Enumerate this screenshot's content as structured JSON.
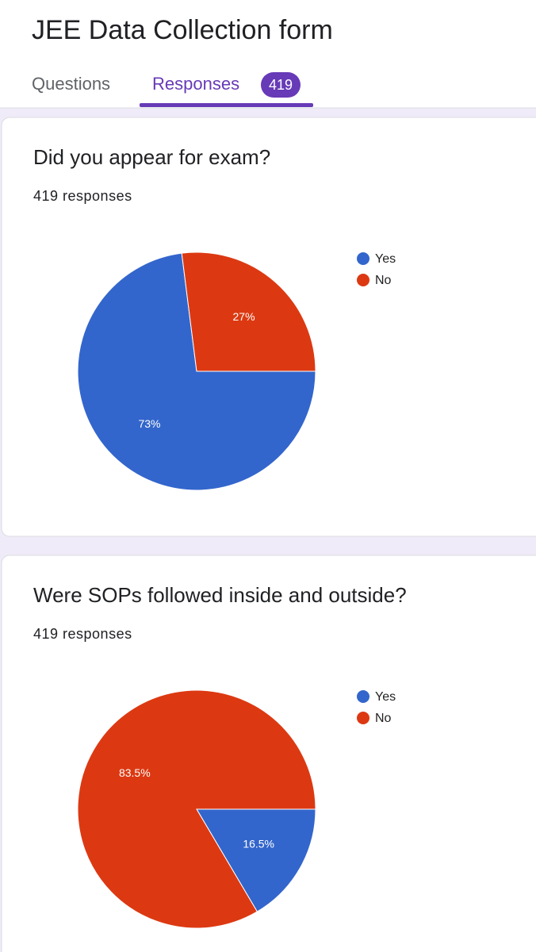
{
  "header": {
    "title": "JEE Data Collection form",
    "tabs": [
      "Questions",
      "Responses"
    ],
    "response_count": 419
  },
  "chart_data": [
    {
      "type": "pie",
      "title": "Did you appear for exam?",
      "subtitle": "419 responses",
      "categories": [
        "Yes",
        "No"
      ],
      "values": [
        73,
        27
      ],
      "value_labels": [
        "73%",
        "27%"
      ],
      "colors": [
        "#3366cc",
        "#dc3912"
      ],
      "legend": "right"
    },
    {
      "type": "pie",
      "title": "Were SOPs followed inside and outside?",
      "subtitle": "419 responses",
      "categories": [
        "Yes",
        "No"
      ],
      "values": [
        16.5,
        83.5
      ],
      "value_labels": [
        "16.5%",
        "83.5%"
      ],
      "colors": [
        "#3366cc",
        "#dc3912"
      ],
      "legend": "right"
    }
  ]
}
